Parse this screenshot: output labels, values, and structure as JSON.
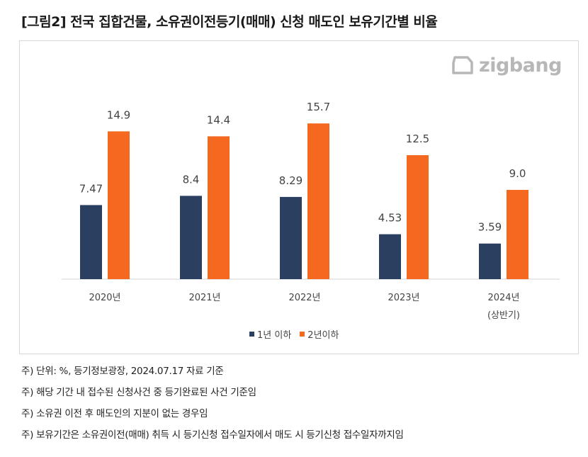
{
  "title": "[그림2] 전국 집합건물, 소유권이전등기(매매) 신청 매도인 보유기간별 비율",
  "logo": {
    "text": "zigbang",
    "icon": "zigbang-logo-icon"
  },
  "chart_data": {
    "type": "bar",
    "categories": [
      "2020년",
      "2021년",
      "2022년",
      "2023년",
      "2024년"
    ],
    "category_sublabels": [
      "",
      "",
      "",
      "",
      "(상반기)"
    ],
    "series": [
      {
        "name": "1년 이하",
        "color": "#2b3f61",
        "values": [
          7.47,
          8.4,
          8.29,
          4.53,
          3.59
        ],
        "labels": [
          "7.47",
          "8.4",
          "8.29",
          "4.53",
          "3.59"
        ]
      },
      {
        "name": "2년이하",
        "color": "#f4691f",
        "values": [
          14.9,
          14.4,
          15.7,
          12.5,
          9.0
        ],
        "labels": [
          "14.9",
          "14.4",
          "15.7",
          "12.5",
          "9.0"
        ]
      }
    ],
    "title": "",
    "xlabel": "",
    "ylabel": "",
    "ylim": [
      0,
      17
    ],
    "grid": false,
    "legend_position": "bottom"
  },
  "notes": [
    "주) 단위: %, 등기정보광장, 2024.07.17 자료 기준",
    "주) 해당 기간 내 접수된 신청사건 중 등기완료된 사건 기준임",
    "주) 소유권 이전 후 매도인의 지분이 없는 경우임",
    "주) 보유기간은 소유권이전(매매) 취득 시 등기신청 접수일자에서 매도 시 등기신청 접수일자까지임"
  ]
}
